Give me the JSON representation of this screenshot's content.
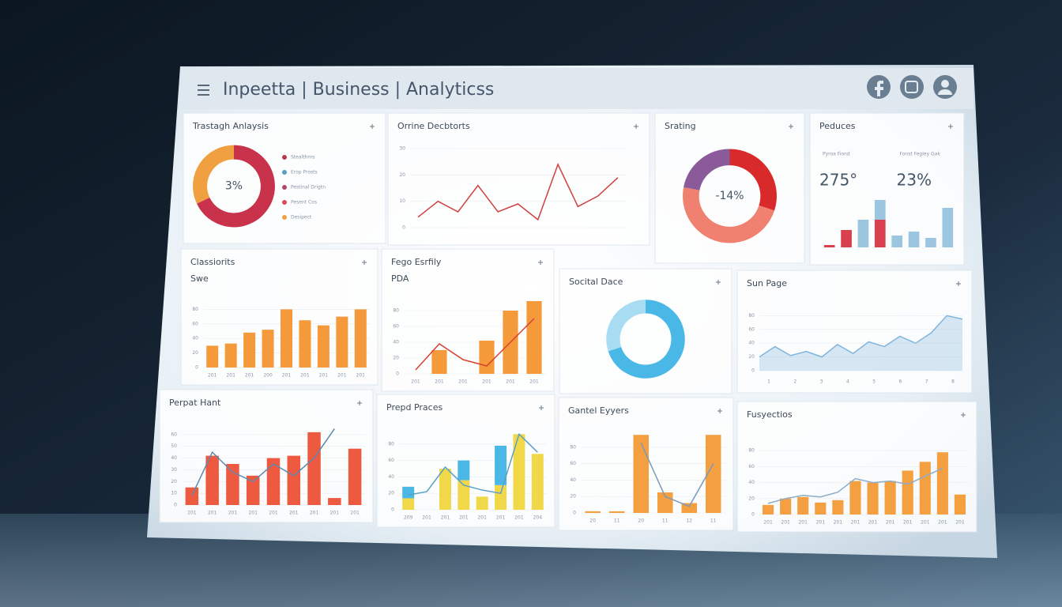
{
  "header": {
    "title": "Inpeetta | Business | Analyticss"
  },
  "panels": [
    {
      "title": "Trastagh Anlaysis",
      "type": "donut",
      "values": [
        68,
        32
      ],
      "colors": [
        "#c8324a",
        "#f0a040"
      ],
      "center": "3%",
      "legend": [
        {
          "name": "Stealthms",
          "color": "#b83a50"
        },
        {
          "name": "Erop Prosts",
          "color": "#5aa0c0"
        },
        {
          "name": "Pestinal Drigtn",
          "color": "#b04a6a"
        },
        {
          "name": "Pesent Cos",
          "color": "#d84a5a"
        },
        {
          "name": "Desipect",
          "color": "#f0a040"
        }
      ]
    },
    {
      "title": "Orrine Decbtorts",
      "type": "line",
      "values": [
        4,
        10,
        6,
        16,
        6,
        9,
        3,
        24,
        8,
        12,
        19
      ],
      "color": "#d04040",
      "ylim": [
        0,
        30
      ],
      "yticks": [
        0,
        10,
        20,
        30
      ]
    },
    {
      "title": "Srating",
      "type": "donut",
      "values": [
        30,
        48,
        22
      ],
      "colors": [
        "#d82a2a",
        "#f08070",
        "#8a5a9a"
      ],
      "center": "-14%"
    },
    {
      "title": "Peduces",
      "type": "kpi",
      "kpis": [
        {
          "label": "Pyroa Fiond",
          "value": "275°"
        },
        {
          "label": "Fonst Fegley Gak",
          "value": "23%"
        }
      ],
      "series": [
        {
          "color": "#d8404e",
          "values": [
            3,
            22,
            0,
            35,
            0,
            0,
            0,
            0
          ]
        },
        {
          "color": "#9cc6e0",
          "values": [
            0,
            0,
            35,
            25,
            15,
            20,
            12,
            50
          ]
        }
      ],
      "ylim": [
        0,
        70
      ]
    },
    {
      "title": "Classiorits",
      "subtitle": "Swe",
      "type": "bar",
      "series": [
        {
          "color": "#f49a3a",
          "values": [
            30,
            33,
            48,
            52,
            80,
            65,
            58,
            70,
            80
          ]
        }
      ],
      "ylim": [
        0,
        100
      ],
      "yticks": [
        0,
        20,
        40,
        60,
        80
      ],
      "categories": [
        "201",
        "201",
        "201",
        "200",
        "201",
        "201",
        "201",
        "201",
        "201"
      ]
    },
    {
      "title": "Fego Esrfily",
      "subtitle": "PDA",
      "type": "bar",
      "series": [
        {
          "color": "#f49a3a",
          "values": [
            0,
            30,
            0,
            42,
            80,
            92
          ]
        }
      ],
      "line": {
        "color": "#d84030",
        "values": [
          5,
          38,
          18,
          10,
          40,
          70
        ]
      },
      "ylim": [
        0,
        100
      ],
      "yticks": [
        0,
        20,
        40,
        60,
        80
      ],
      "categories": [
        "201",
        "201",
        "201",
        "201",
        "201",
        "201"
      ]
    },
    {
      "title": "Socital Dace",
      "type": "donut",
      "values": [
        70,
        30
      ],
      "colors": [
        "#4ab8e6",
        "#a8dcf2"
      ]
    },
    {
      "title": "Sun Page",
      "type": "area",
      "values": [
        20,
        35,
        22,
        28,
        20,
        38,
        25,
        42,
        35,
        50,
        40,
        55,
        80,
        75
      ],
      "color": "#7fb4dc",
      "ylim": [
        0,
        100
      ],
      "yticks": [
        0,
        20,
        40,
        60,
        80
      ],
      "xticks": [
        "1",
        "2",
        "3",
        "4",
        "5",
        "6",
        "7",
        "8"
      ]
    },
    {
      "title": "Perpat Hant",
      "type": "bar",
      "series": [
        {
          "color": "#ee5a40",
          "values": [
            15,
            42,
            35,
            25,
            40,
            42,
            62,
            6,
            48
          ]
        }
      ],
      "line": {
        "color": "#5a8ab0",
        "values": [
          8,
          45,
          28,
          20,
          35,
          25,
          40,
          65,
          null
        ]
      },
      "ylim": [
        0,
        70
      ],
      "yticks": [
        0,
        10,
        20,
        30,
        40,
        50,
        60
      ],
      "categories": [
        "201",
        "201",
        "201",
        "201",
        "201",
        "201",
        "201",
        "201",
        "201"
      ]
    },
    {
      "title": "Prepd Praces",
      "type": "bar",
      "series": [
        {
          "color": "#f0d848",
          "values": [
            14,
            0,
            50,
            36,
            16,
            30,
            92,
            68
          ]
        },
        {
          "color": "#4ab8e6",
          "values": [
            14,
            0,
            0,
            24,
            0,
            48,
            0,
            0
          ]
        }
      ],
      "line": {
        "color": "#5aa0c8",
        "values": [
          18,
          22,
          52,
          30,
          24,
          20,
          92,
          70
        ]
      },
      "ylim": [
        0,
        100
      ],
      "yticks": [
        0,
        20,
        40,
        60,
        80
      ],
      "categories": [
        "209",
        "201",
        "201",
        "201",
        "201",
        "201",
        "201",
        "204"
      ]
    },
    {
      "title": "Gantel Eyyers",
      "type": "bar",
      "series": [
        {
          "color": "#f4a040",
          "values": [
            2,
            2,
            95,
            25,
            12,
            95
          ]
        }
      ],
      "line": {
        "color": "#7a9ab8",
        "values": [
          null,
          null,
          85,
          20,
          8,
          60
        ]
      },
      "ylim": [
        0,
        100
      ],
      "yticks": [
        0,
        20,
        40,
        60,
        80
      ],
      "categories": [
        "20",
        "11",
        "20",
        "11",
        "12",
        "11"
      ]
    },
    {
      "title": "Fusyectios",
      "type": "bar",
      "series": [
        {
          "color": "#f4a040",
          "values": [
            12,
            20,
            22,
            15,
            18,
            42,
            40,
            42,
            55,
            66,
            78,
            25
          ]
        }
      ],
      "line": {
        "color": "#8aaccc",
        "values": [
          14,
          20,
          24,
          22,
          28,
          45,
          40,
          42,
          38,
          48,
          58,
          null
        ]
      },
      "ylim": [
        0,
        100
      ],
      "yticks": [
        0,
        20,
        40,
        60,
        80
      ],
      "categories": [
        "201",
        "201",
        "201",
        "201",
        "201",
        "201",
        "201",
        "201",
        "201",
        "201",
        "201",
        "201"
      ]
    }
  ]
}
